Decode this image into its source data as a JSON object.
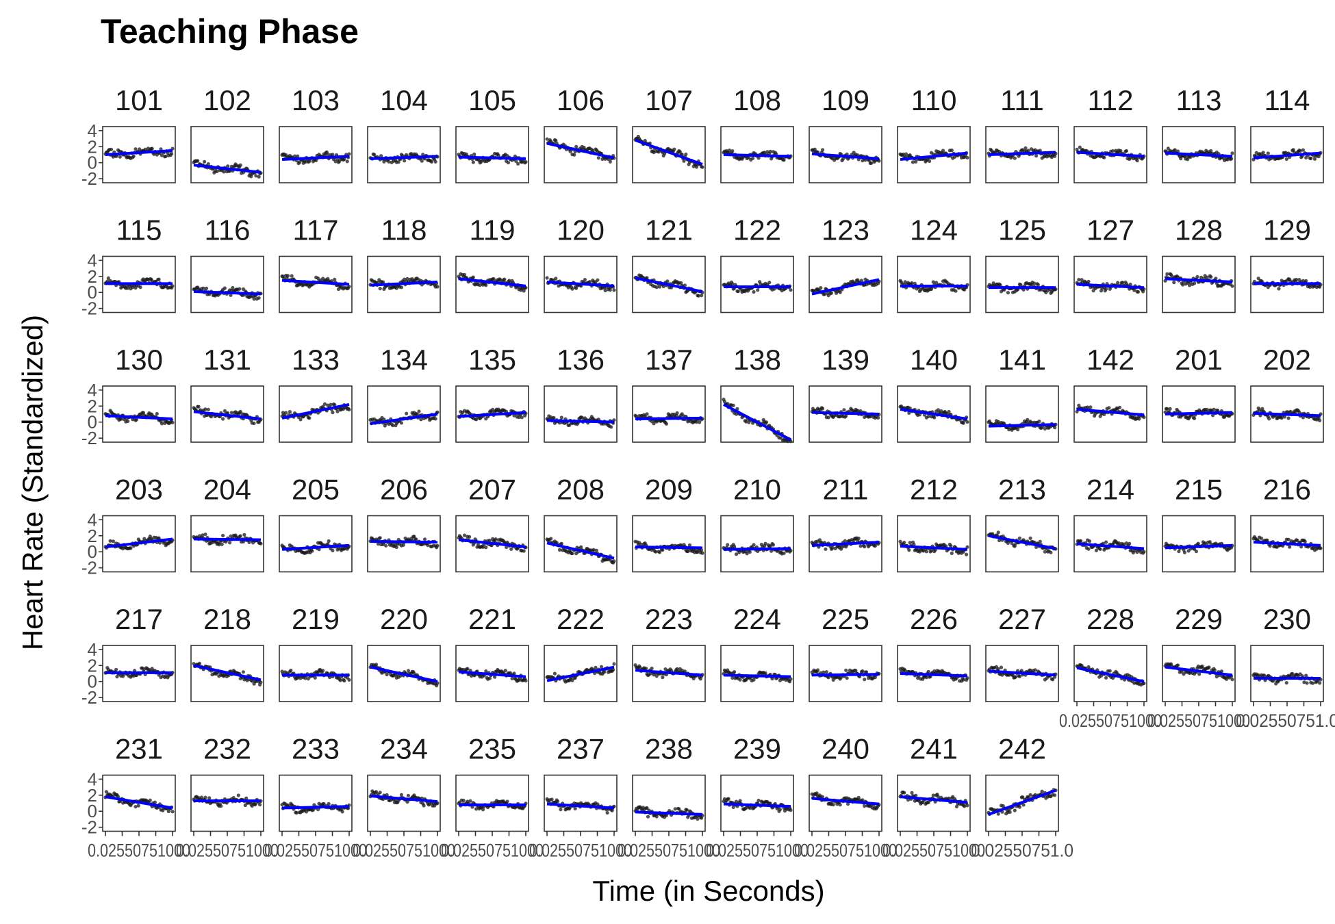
{
  "chart_data": {
    "type": "scatter",
    "title": "Teaching Phase",
    "xlabel": "Time (in Seconds)",
    "ylabel": "Heart Rate (Standardized)",
    "ylim": [
      -2.5,
      4.5
    ],
    "y_ticks": [
      "4",
      "2",
      "0",
      "-2"
    ],
    "y_tick_values": [
      4,
      2,
      0,
      -2
    ],
    "x_tick_text": "0.02550751000",
    "x_tick_text_last": "0.02550751.0",
    "grid": false,
    "colors": {
      "points": "#1a1a1a",
      "fit_line": "#0000ff",
      "panel_border": "#333333",
      "ticks": "#4d4d4d"
    },
    "panels": [
      {
        "id": "101",
        "trend": [
          1.0,
          1.5
        ]
      },
      {
        "id": "102",
        "trend": [
          -0.3,
          -1.2
        ]
      },
      {
        "id": "103",
        "trend": [
          0.4,
          0.8
        ]
      },
      {
        "id": "104",
        "trend": [
          0.5,
          0.8
        ]
      },
      {
        "id": "105",
        "trend": [
          0.7,
          0.5
        ]
      },
      {
        "id": "106",
        "trend": [
          2.4,
          0.6
        ]
      },
      {
        "id": "107",
        "trend": [
          2.8,
          -0.2
        ]
      },
      {
        "id": "108",
        "trend": [
          1.0,
          0.8
        ]
      },
      {
        "id": "109",
        "trend": [
          1.1,
          0.5
        ]
      },
      {
        "id": "110",
        "trend": [
          0.4,
          1.2
        ]
      },
      {
        "id": "111",
        "trend": [
          1.0,
          1.3
        ]
      },
      {
        "id": "112",
        "trend": [
          1.3,
          0.8
        ]
      },
      {
        "id": "113",
        "trend": [
          1.2,
          0.8
        ]
      },
      {
        "id": "114",
        "trend": [
          0.6,
          1.2
        ]
      },
      {
        "id": "115",
        "trend": [
          1.1,
          1.1
        ]
      },
      {
        "id": "116",
        "trend": [
          0.1,
          -0.2
        ]
      },
      {
        "id": "117",
        "trend": [
          1.5,
          1.0
        ]
      },
      {
        "id": "118",
        "trend": [
          0.9,
          1.3
        ]
      },
      {
        "id": "119",
        "trend": [
          1.7,
          0.8
        ]
      },
      {
        "id": "120",
        "trend": [
          1.3,
          0.8
        ]
      },
      {
        "id": "121",
        "trend": [
          1.8,
          0.1
        ]
      },
      {
        "id": "122",
        "trend": [
          0.7,
          0.7
        ]
      },
      {
        "id": "123",
        "trend": [
          -0.2,
          1.6
        ]
      },
      {
        "id": "124",
        "trend": [
          0.8,
          0.8
        ]
      },
      {
        "id": "125",
        "trend": [
          0.6,
          0.6
        ]
      },
      {
        "id": "127",
        "trend": [
          1.0,
          0.6
        ]
      },
      {
        "id": "128",
        "trend": [
          1.7,
          1.3
        ]
      },
      {
        "id": "129",
        "trend": [
          1.1,
          1.1
        ]
      },
      {
        "id": "130",
        "trend": [
          0.8,
          0.4
        ]
      },
      {
        "id": "131",
        "trend": [
          1.3,
          0.4
        ]
      },
      {
        "id": "133",
        "trend": [
          0.5,
          2.2
        ]
      },
      {
        "id": "134",
        "trend": [
          -0.2,
          1.0
        ]
      },
      {
        "id": "135",
        "trend": [
          0.7,
          1.2
        ]
      },
      {
        "id": "136",
        "trend": [
          0.2,
          0.0
        ]
      },
      {
        "id": "137",
        "trend": [
          0.4,
          0.5
        ]
      },
      {
        "id": "138",
        "trend": [
          2.2,
          -2.2
        ]
      },
      {
        "id": "139",
        "trend": [
          1.2,
          1.0
        ]
      },
      {
        "id": "140",
        "trend": [
          1.6,
          0.4
        ]
      },
      {
        "id": "141",
        "trend": [
          -0.5,
          -0.3
        ]
      },
      {
        "id": "142",
        "trend": [
          1.6,
          0.9
        ]
      },
      {
        "id": "201",
        "trend": [
          1.0,
          1.2
        ]
      },
      {
        "id": "202",
        "trend": [
          1.1,
          0.8
        ]
      },
      {
        "id": "203",
        "trend": [
          0.6,
          1.6
        ]
      },
      {
        "id": "204",
        "trend": [
          1.6,
          1.5
        ]
      },
      {
        "id": "205",
        "trend": [
          0.3,
          0.8
        ]
      },
      {
        "id": "206",
        "trend": [
          1.3,
          1.2
        ]
      },
      {
        "id": "207",
        "trend": [
          1.5,
          0.6
        ]
      },
      {
        "id": "208",
        "trend": [
          1.1,
          -0.8
        ]
      },
      {
        "id": "209",
        "trend": [
          0.6,
          0.5
        ]
      },
      {
        "id": "210",
        "trend": [
          0.3,
          0.4
        ]
      },
      {
        "id": "211",
        "trend": [
          0.8,
          1.2
        ]
      },
      {
        "id": "212",
        "trend": [
          0.7,
          0.3
        ]
      },
      {
        "id": "213",
        "trend": [
          2.0,
          0.4
        ]
      },
      {
        "id": "214",
        "trend": [
          1.0,
          0.4
        ]
      },
      {
        "id": "215",
        "trend": [
          0.5,
          0.8
        ]
      },
      {
        "id": "216",
        "trend": [
          1.2,
          0.8
        ]
      },
      {
        "id": "217",
        "trend": [
          1.1,
          1.1
        ]
      },
      {
        "id": "218",
        "trend": [
          2.0,
          0.2
        ]
      },
      {
        "id": "219",
        "trend": [
          0.8,
          0.8
        ]
      },
      {
        "id": "220",
        "trend": [
          1.8,
          0.0
        ]
      },
      {
        "id": "221",
        "trend": [
          1.2,
          0.6
        ]
      },
      {
        "id": "222",
        "trend": [
          0.1,
          1.8
        ]
      },
      {
        "id": "223",
        "trend": [
          1.4,
          0.8
        ]
      },
      {
        "id": "224",
        "trend": [
          0.8,
          0.6
        ]
      },
      {
        "id": "225",
        "trend": [
          0.8,
          0.9
        ]
      },
      {
        "id": "226",
        "trend": [
          1.0,
          0.7
        ]
      },
      {
        "id": "227",
        "trend": [
          1.3,
          0.8
        ]
      },
      {
        "id": "228",
        "trend": [
          1.7,
          0.0
        ]
      },
      {
        "id": "229",
        "trend": [
          1.8,
          0.8
        ]
      },
      {
        "id": "230",
        "trend": [
          0.4,
          0.4
        ]
      },
      {
        "id": "231",
        "trend": [
          1.8,
          0.4
        ]
      },
      {
        "id": "232",
        "trend": [
          1.3,
          1.3
        ]
      },
      {
        "id": "233",
        "trend": [
          0.4,
          0.6
        ]
      },
      {
        "id": "234",
        "trend": [
          1.9,
          1.2
        ]
      },
      {
        "id": "235",
        "trend": [
          0.8,
          0.8
        ]
      },
      {
        "id": "237",
        "trend": [
          0.9,
          0.4
        ]
      },
      {
        "id": "238",
        "trend": [
          -0.1,
          -0.4
        ]
      },
      {
        "id": "239",
        "trend": [
          0.9,
          0.6
        ]
      },
      {
        "id": "240",
        "trend": [
          1.6,
          0.9
        ]
      },
      {
        "id": "241",
        "trend": [
          1.8,
          1.1
        ]
      },
      {
        "id": "242",
        "trend": [
          -0.4,
          2.6
        ]
      }
    ]
  }
}
